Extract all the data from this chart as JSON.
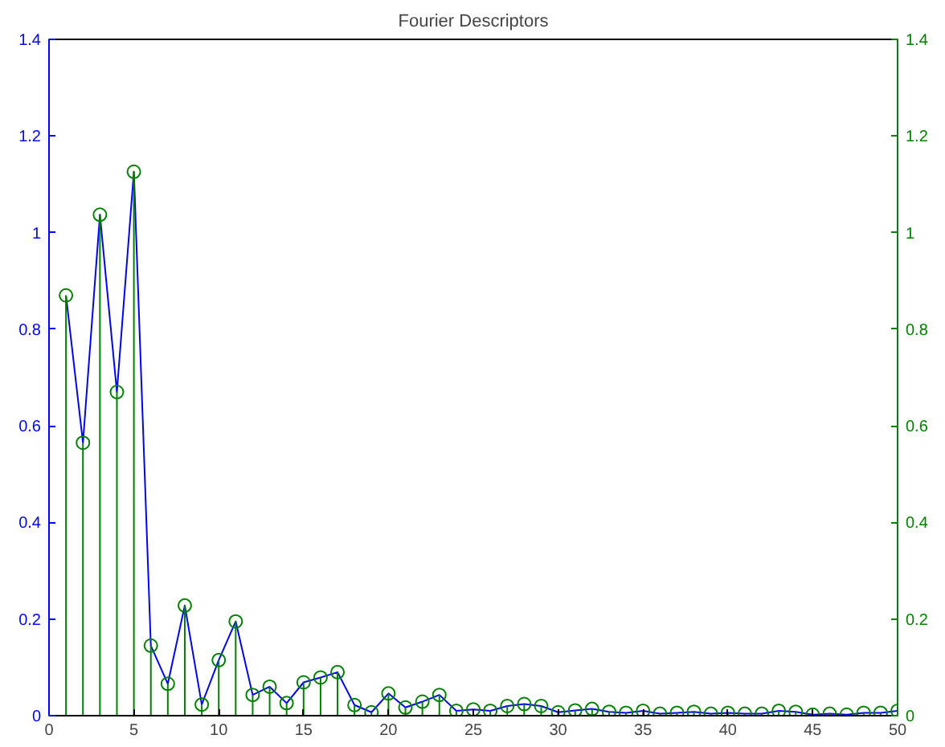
{
  "chart_data": {
    "type": "line",
    "title": "Fourier Descriptors",
    "x": [
      1,
      2,
      3,
      4,
      5,
      6,
      7,
      8,
      9,
      10,
      11,
      12,
      13,
      14,
      15,
      16,
      17,
      18,
      19,
      20,
      21,
      22,
      23,
      24,
      25,
      26,
      27,
      28,
      29,
      30,
      31,
      32,
      33,
      34,
      35,
      36,
      37,
      38,
      39,
      40,
      41,
      42,
      43,
      44,
      45,
      46,
      47,
      48,
      49,
      50
    ],
    "series": [
      {
        "color": "#0000ff",
        "axis": "y",
        "marker": "none",
        "values": [
          0.87,
          0.565,
          1.037,
          0.67,
          1.126,
          0.145,
          0.066,
          0.228,
          0.023,
          0.115,
          0.195,
          0.043,
          0.06,
          0.026,
          0.069,
          0.079,
          0.09,
          0.022,
          0.007,
          0.046,
          0.017,
          0.029,
          0.043,
          0.01,
          0.013,
          0.01,
          0.02,
          0.024,
          0.02,
          0.007,
          0.011,
          0.014,
          0.008,
          0.006,
          0.01,
          0.004,
          0.006,
          0.008,
          0.004,
          0.006,
          0.004,
          0.004,
          0.01,
          0.008,
          0.002,
          0.004,
          0.002,
          0.006,
          0.006,
          0.01
        ]
      },
      {
        "type": "lollipop",
        "color": "#008000",
        "axis": "y2",
        "marker": "circle",
        "values": [
          0.87,
          0.565,
          1.037,
          0.67,
          1.126,
          0.145,
          0.066,
          0.228,
          0.023,
          0.115,
          0.195,
          0.043,
          0.06,
          0.026,
          0.069,
          0.079,
          0.09,
          0.022,
          0.007,
          0.046,
          0.017,
          0.029,
          0.043,
          0.01,
          0.013,
          0.01,
          0.02,
          0.024,
          0.02,
          0.007,
          0.011,
          0.014,
          0.008,
          0.006,
          0.01,
          0.004,
          0.006,
          0.008,
          0.004,
          0.006,
          0.004,
          0.004,
          0.01,
          0.008,
          0.002,
          0.004,
          0.002,
          0.006,
          0.006,
          0.01
        ]
      }
    ],
    "xlim": [
      0,
      50
    ],
    "xticks": [
      0,
      5,
      10,
      15,
      20,
      25,
      30,
      35,
      40,
      45,
      50
    ],
    "ylim": [
      0,
      1.4
    ],
    "yticks": [
      0,
      0.2,
      0.4,
      0.6,
      0.8,
      1,
      1.2,
      1.4
    ],
    "y2lim": [
      0,
      1.4
    ],
    "y2ticks": [
      0,
      0.2,
      0.4,
      0.6,
      0.8,
      1,
      1.2,
      1.4
    ],
    "grid": false
  }
}
